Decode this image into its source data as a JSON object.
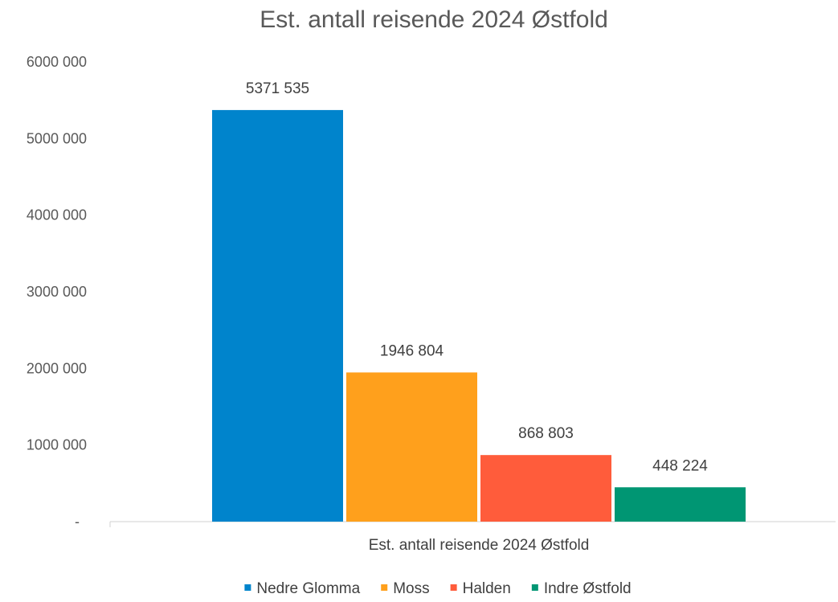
{
  "chart_data": {
    "type": "bar",
    "title": "Est. antall reisende 2024 Østfold",
    "category_label": "Est. antall reisende 2024 Østfold",
    "ylim": [
      0,
      6000000
    ],
    "yticks": [
      {
        "value": 0,
        "label": "-"
      },
      {
        "value": 1000000,
        "label": "1000 000"
      },
      {
        "value": 2000000,
        "label": "2000 000"
      },
      {
        "value": 3000000,
        "label": "3000 000"
      },
      {
        "value": 4000000,
        "label": "4000 000"
      },
      {
        "value": 5000000,
        "label": "5000 000"
      },
      {
        "value": 6000000,
        "label": "6000 000"
      }
    ],
    "grid": false,
    "legend_position": "bottom",
    "series": [
      {
        "name": "Nedre Glomma",
        "value": 5371535,
        "label": "5371 535",
        "color": "#0084CC"
      },
      {
        "name": "Moss",
        "value": 1946804,
        "label": "1946 804",
        "color": "#FFA01C"
      },
      {
        "name": "Halden",
        "value": 868803,
        "label": "868 803",
        "color": "#FF5C3B"
      },
      {
        "name": "Indre Østfold",
        "value": 448224,
        "label": "448 224",
        "color": "#009673"
      }
    ]
  }
}
